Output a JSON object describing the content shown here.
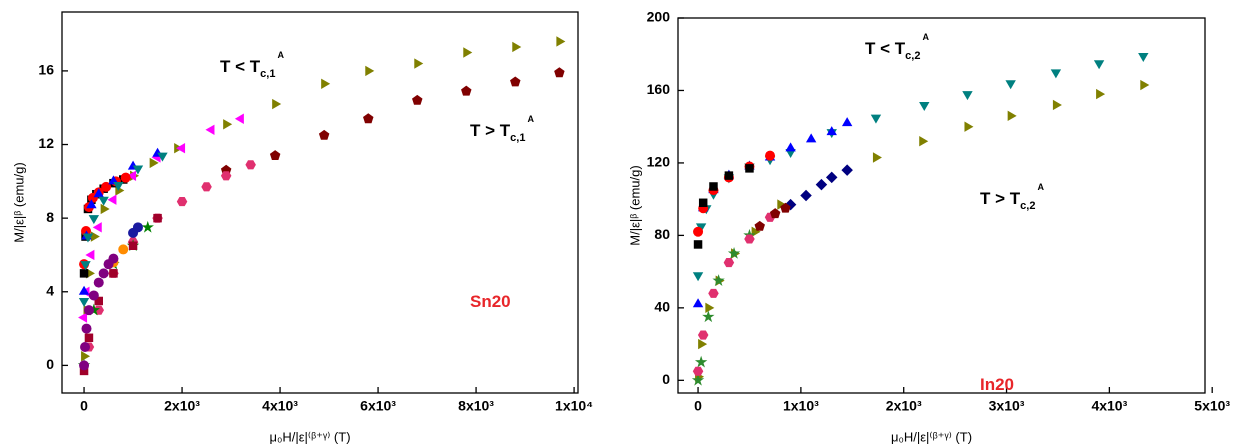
{
  "chart_data": [
    {
      "type": "scatter",
      "ylabel": "M/|ε|ᵝ  (emu/g)",
      "xlabel": "μ₀H/|ε|⁽ᵝ⁺ᵞ⁾  (T)",
      "xlim": [
        -450,
        10080
      ],
      "ylim": [
        -1.5,
        19.2
      ],
      "xticks": [
        0,
        {
          "value": 2000,
          "label": "2x10³"
        },
        {
          "value": 4000,
          "label": "4x10³"
        },
        {
          "value": 6000,
          "label": "6x10³"
        },
        {
          "value": 8000,
          "label": "8x10³"
        },
        {
          "value": 10000,
          "label": "1x10⁴"
        }
      ],
      "yticks": [
        0,
        4,
        8,
        12,
        16
      ],
      "annotations": [
        {
          "text": "T < T",
          "sub": "c,1",
          "sup": "A",
          "color": "#000000"
        },
        {
          "text": "T > T",
          "sub": "c,1",
          "sup": "A",
          "color": "#000000"
        },
        {
          "text": "Sn20",
          "color": "#e8262a"
        }
      ],
      "series": [
        {
          "color": "#808000",
          "marker": "triangle-right",
          "x": [
            0,
            50,
            100,
            200,
            400,
            700,
            1000,
            1400,
            1900,
            2900,
            3900,
            4900,
            5800,
            6800,
            7800,
            8800,
            9700
          ],
          "values": [
            0.5,
            3,
            5,
            7,
            8.5,
            9.5,
            10.3,
            11,
            11.8,
            13.1,
            14.2,
            15.3,
            16,
            16.4,
            17,
            17.3,
            17.6
          ]
        },
        {
          "color": "#800000",
          "marker": "pentagon",
          "x": [
            2900,
            3900,
            4900,
            5800,
            6800,
            7800,
            8800,
            9700
          ],
          "values": [
            10.6,
            11.4,
            12.5,
            13.4,
            14.4,
            14.9,
            15.4,
            15.9
          ]
        },
        {
          "color": "#e0306f",
          "marker": "hexagon",
          "x": [
            100,
            300,
            600,
            1000,
            1500,
            2000,
            2500,
            2900,
            3400
          ],
          "values": [
            1,
            3,
            5,
            6.7,
            8,
            8.9,
            9.7,
            10.3,
            10.9
          ]
        },
        {
          "color": "#ff00ff",
          "marker": "triangle-left",
          "x": [
            0,
            50,
            150,
            300,
            600,
            1000,
            1500,
            2000,
            2600,
            3200
          ],
          "values": [
            2.6,
            4,
            6,
            7.5,
            9,
            10.3,
            11.3,
            11.8,
            12.8,
            13.4
          ]
        },
        {
          "color": "#000000",
          "marker": "square",
          "x": [
            0,
            30,
            80,
            150,
            250,
            400,
            600,
            800
          ],
          "values": [
            5,
            7,
            8.5,
            9,
            9.3,
            9.6,
            9.9,
            10.1
          ]
        },
        {
          "color": "#ff0000",
          "marker": "circle",
          "x": [
            0,
            40,
            100,
            180,
            300,
            450,
            650,
            850
          ],
          "values": [
            5.5,
            7.3,
            8.6,
            9.1,
            9.4,
            9.7,
            10,
            10.2
          ]
        },
        {
          "color": "#0000ff",
          "marker": "triangle-up",
          "x": [
            0,
            50,
            150,
            300,
            600,
            1000,
            1500
          ],
          "values": [
            4,
            7,
            8.7,
            9.3,
            10,
            10.8,
            11.5
          ]
        },
        {
          "color": "#008080",
          "marker": "triangle-down",
          "x": [
            0,
            30,
            80,
            200,
            400,
            700,
            1100,
            1600
          ],
          "values": [
            3.5,
            5.5,
            7,
            8,
            9,
            9.8,
            10.7,
            11.4
          ]
        },
        {
          "color": "#008000",
          "marker": "star",
          "x": [
            0,
            200,
            600,
            1000,
            1300
          ],
          "values": [
            0,
            3,
            5.5,
            6.5,
            7.5
          ]
        },
        {
          "color": "#a0002a",
          "marker": "square",
          "x": [
            0,
            100,
            300,
            600,
            1000,
            1500
          ],
          "values": [
            -0.3,
            1.5,
            3.5,
            5,
            6.5,
            8
          ]
        },
        {
          "color": "#ff8c00",
          "marker": "circle",
          "x": [
            600,
            800
          ],
          "values": [
            5.6,
            6.3
          ]
        },
        {
          "color": "#1a1aa0",
          "marker": "circle",
          "x": [
            1000,
            1100
          ],
          "values": [
            7.2,
            7.5
          ]
        },
        {
          "color": "#800080",
          "marker": "circle",
          "x": [
            0,
            20,
            50,
            100,
            200,
            300,
            400,
            500,
            600
          ],
          "values": [
            0,
            1,
            2,
            3,
            3.8,
            4.5,
            5,
            5.5,
            5.8
          ]
        }
      ]
    },
    {
      "type": "scatter",
      "ylabel": "M/|ε|ᵝ  (emu/g)",
      "xlabel": "μ₀H/|ε|⁽ᵝ⁺ᵞ⁾  (T)",
      "xlim": [
        -195,
        4930
      ],
      "ylim": [
        -7,
        200
      ],
      "xticks": [
        0,
        {
          "value": 1000,
          "label": "1x10³"
        },
        {
          "value": 2000,
          "label": "2x10³"
        },
        {
          "value": 3000,
          "label": "3x10³"
        },
        {
          "value": 4000,
          "label": "4x10³"
        },
        {
          "value": 5000,
          "label": "5x10³"
        }
      ],
      "yticks": [
        0,
        40,
        80,
        120,
        160,
        200
      ],
      "annotations": [
        {
          "text": "T < T",
          "sub": "c,2",
          "sup": "A",
          "color": "#000000"
        },
        {
          "text": "T > T",
          "sub": "c,2",
          "sup": "A",
          "color": "#000000"
        },
        {
          "text": "In20",
          "color": "#e8262a"
        }
      ],
      "series": [
        {
          "color": "#008080",
          "marker": "triangle-down",
          "x": [
            0,
            30,
            80,
            150,
            300,
            500,
            700,
            900,
            1300,
            1730,
            2200,
            2620,
            3040,
            3480,
            3900,
            4330
          ],
          "values": [
            58,
            85,
            95,
            103,
            112,
            118,
            122,
            126,
            137,
            145,
            152,
            158,
            164,
            170,
            175,
            179
          ]
        },
        {
          "color": "#808000",
          "marker": "triangle-right",
          "x": [
            0,
            30,
            100,
            200,
            350,
            550,
            800,
            1730,
            2180,
            2620,
            3040,
            3480,
            3900,
            4330
          ],
          "values": [
            2,
            20,
            40,
            55,
            70,
            82,
            97,
            123,
            132,
            140,
            146,
            152,
            158,
            163
          ]
        },
        {
          "color": "#000080",
          "marker": "diamond",
          "x": [
            900,
            1050,
            1200,
            1300,
            1450
          ],
          "values": [
            97,
            102,
            108,
            112,
            116
          ]
        },
        {
          "color": "#0000ff",
          "marker": "triangle-up",
          "x": [
            0,
            50,
            150,
            300,
            500,
            700,
            900,
            1100,
            1300,
            1450
          ],
          "values": [
            42,
            95,
            105,
            113,
            118,
            123,
            128,
            133,
            137,
            142
          ]
        },
        {
          "color": "#ff0000",
          "marker": "circle",
          "x": [
            0,
            50,
            150,
            300,
            500,
            700
          ],
          "values": [
            82,
            95,
            105,
            112,
            118,
            124
          ]
        },
        {
          "color": "#000000",
          "marker": "square",
          "x": [
            0,
            50,
            150,
            300,
            500
          ],
          "values": [
            75,
            98,
            107,
            113,
            117
          ]
        },
        {
          "color": "#2e8b2e",
          "marker": "star",
          "x": [
            0,
            30,
            100,
            200,
            350,
            500
          ],
          "values": [
            0,
            10,
            35,
            55,
            70,
            80
          ]
        },
        {
          "color": "#e0306f",
          "marker": "hexagon",
          "x": [
            0,
            50,
            150,
            300,
            500,
            700
          ],
          "values": [
            5,
            25,
            48,
            65,
            78,
            90
          ]
        },
        {
          "color": "#800000",
          "marker": "pentagon",
          "x": [
            600,
            750,
            850
          ],
          "values": [
            85,
            92,
            95
          ]
        }
      ]
    }
  ]
}
